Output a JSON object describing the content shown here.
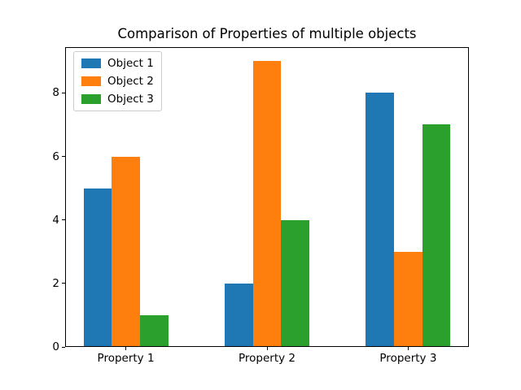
{
  "chart_data": {
    "type": "bar",
    "title": "Comparison of Properties of multiple objects",
    "categories": [
      "Property 1",
      "Property 2",
      "Property 3"
    ],
    "series": [
      {
        "name": "Object 1",
        "color": "#1f77b4",
        "values": [
          5,
          2,
          8
        ]
      },
      {
        "name": "Object 2",
        "color": "#ff7f0e",
        "values": [
          6,
          9,
          3
        ]
      },
      {
        "name": "Object 3",
        "color": "#2ca02c",
        "values": [
          1,
          4,
          7
        ]
      }
    ],
    "xlabel": "",
    "ylabel": "",
    "yticks": [
      0,
      2,
      4,
      6,
      8
    ],
    "ylim": [
      0,
      9.45
    ],
    "xlim": [
      -0.43,
      2.43
    ],
    "bar_width": 0.2,
    "bar_offsets": [
      -0.2,
      0,
      0.2
    ],
    "grid": false,
    "legend": {
      "position": "upper-left",
      "labels": [
        "Object 1",
        "Object 2",
        "Object 3"
      ]
    },
    "colors": {
      "background": "#ffffff",
      "axes": "#000000",
      "text": "#000000",
      "legend_border": "#cccccc"
    }
  }
}
